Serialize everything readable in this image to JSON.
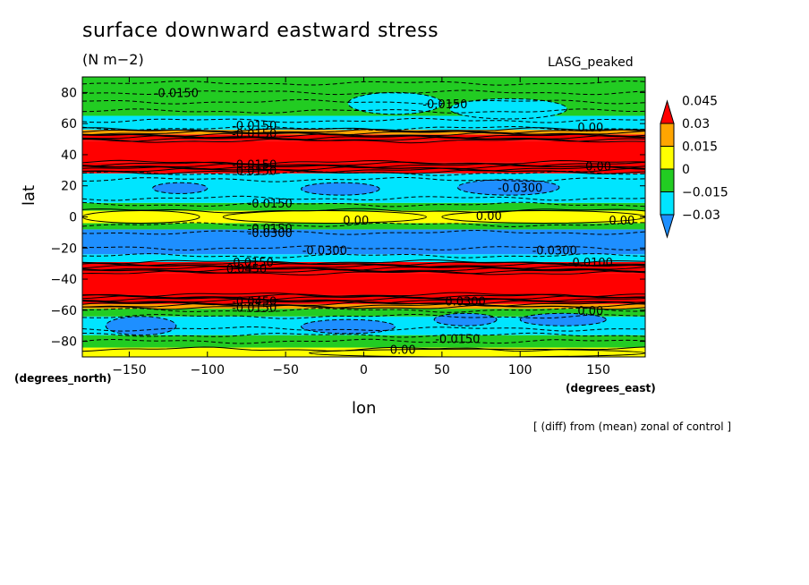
{
  "chart_data": {
    "type": "heatmap",
    "title": "surface downward eastward stress",
    "units": "(N m−2)",
    "dataset_label": "LASG_peaked",
    "xlabel": "lon",
    "ylabel": "lat",
    "x_units": "(degrees_east)",
    "y_units": "(degrees_north)",
    "footnote": "[ (diff) from (mean) zonal of control ]",
    "xlim": [
      -180,
      180
    ],
    "ylim": [
      -90,
      90
    ],
    "x_ticks": [
      -150,
      -100,
      -50,
      0,
      50,
      100,
      150
    ],
    "y_ticks": [
      -80,
      -60,
      -40,
      -20,
      0,
      20,
      40,
      60,
      80
    ],
    "x_tick_labels": [
      "−150",
      "−100",
      "−50",
      "0",
      "50",
      "100",
      "150"
    ],
    "y_tick_labels": [
      "−80",
      "−60",
      "−40",
      "−20",
      "0",
      "20",
      "40",
      "60",
      "80"
    ],
    "colorbar": {
      "levels": [
        -0.03,
        -0.015,
        0,
        0.015,
        0.03,
        0.045
      ],
      "level_labels": [
        "−0.03",
        "−0.015",
        "0",
        "0.015",
        "0.03",
        "0.045"
      ],
      "colors": [
        "#1e8fff",
        "#00e5ff",
        "#22cc22",
        "#ffff00",
        "#ffa500",
        "#ff0000"
      ]
    },
    "bands": [
      {
        "lat": [
          -90,
          -84
        ],
        "value": 0.005
      },
      {
        "lat": [
          -84,
          -76
        ],
        "value": -0.01
      },
      {
        "lat": [
          -76,
          -64
        ],
        "value": -0.02
      },
      {
        "lat": [
          -64,
          -59
        ],
        "value": -0.005
      },
      {
        "lat": [
          -59,
          -56
        ],
        "value": 0.02
      },
      {
        "lat": [
          -56,
          -50
        ],
        "value": 0.03
      },
      {
        "lat": [
          -50,
          -36
        ],
        "value": 0.05
      },
      {
        "lat": [
          -36,
          -29
        ],
        "value": 0.06
      },
      {
        "lat": [
          -29,
          -24
        ],
        "value": -0.02
      },
      {
        "lat": [
          -24,
          -8
        ],
        "value": -0.035
      },
      {
        "lat": [
          -8,
          -4
        ],
        "value": -0.01
      },
      {
        "lat": [
          -4,
          4
        ],
        "value": 0.005
      },
      {
        "lat": [
          4,
          9
        ],
        "value": -0.01
      },
      {
        "lat": [
          9,
          28
        ],
        "value": -0.02
      },
      {
        "lat": [
          28,
          35
        ],
        "value": 0.06
      },
      {
        "lat": [
          35,
          49
        ],
        "value": 0.05
      },
      {
        "lat": [
          49,
          53
        ],
        "value": 0.06
      },
      {
        "lat": [
          53,
          56
        ],
        "value": 0.02
      },
      {
        "lat": [
          56,
          65
        ],
        "value": -0.02
      },
      {
        "lat": [
          65,
          90
        ],
        "value": -0.01
      }
    ],
    "patches": [
      {
        "lon": [
          -135,
          -100
        ],
        "lat": [
          15,
          22
        ],
        "value": -0.035
      },
      {
        "lon": [
          -40,
          10
        ],
        "lat": [
          14,
          22
        ],
        "value": -0.035
      },
      {
        "lon": [
          60,
          125
        ],
        "lat": [
          14,
          24
        ],
        "value": -0.035
      },
      {
        "lon": [
          -180,
          -105
        ],
        "lat": [
          -4,
          4
        ],
        "value": 0.005
      },
      {
        "lon": [
          -90,
          40
        ],
        "lat": [
          -4,
          4
        ],
        "value": 0.005
      },
      {
        "lon": [
          50,
          180
        ],
        "lat": [
          -4,
          4
        ],
        "value": 0.005
      },
      {
        "lon": [
          -165,
          -120
        ],
        "lat": [
          -76,
          -64
        ],
        "value": -0.035
      },
      {
        "lon": [
          -40,
          20
        ],
        "lat": [
          -75,
          -66
        ],
        "value": -0.035
      },
      {
        "lon": [
          45,
          85
        ],
        "lat": [
          -70,
          -62
        ],
        "value": -0.035
      },
      {
        "lon": [
          100,
          155
        ],
        "lat": [
          -70,
          -62
        ],
        "value": -0.035
      },
      {
        "lon": [
          -35,
          180
        ],
        "lat": [
          -90,
          -85
        ],
        "value": 0.005
      },
      {
        "lon": [
          -10,
          50
        ],
        "lat": [
          66,
          80
        ],
        "value": -0.02
      },
      {
        "lon": [
          55,
          130
        ],
        "lat": [
          63,
          76
        ],
        "value": -0.02
      }
    ],
    "contour_lines_lat": [
      -85,
      -80,
      -76,
      -72,
      -64,
      -60,
      -58,
      -57,
      -56,
      -55,
      -54,
      -53,
      -52,
      -51,
      -50,
      -36,
      -35,
      -34,
      -33,
      -32,
      -31,
      -30,
      -29,
      -25,
      -20,
      -10,
      -5,
      4,
      8,
      12,
      24,
      28,
      29,
      30,
      31,
      32,
      33,
      34,
      35,
      49,
      50,
      51,
      52,
      53,
      54,
      55,
      56,
      57,
      62,
      68,
      74,
      80,
      86
    ],
    "contour_labels": [
      {
        "lon": -120,
        "lat": 79,
        "text": "-0.0150"
      },
      {
        "lon": 52,
        "lat": 72,
        "text": "-0.0150"
      },
      {
        "lon": -70,
        "lat": 58,
        "text": "-0.0150"
      },
      {
        "lon": -70,
        "lat": 53,
        "text": "-0.0150"
      },
      {
        "lon": 145,
        "lat": 57,
        "text": "0.00"
      },
      {
        "lon": -70,
        "lat": 33,
        "text": "-0.0150"
      },
      {
        "lon": -70,
        "lat": 29,
        "text": "-0.0150"
      },
      {
        "lon": 150,
        "lat": 32,
        "text": "0.00"
      },
      {
        "lon": 100,
        "lat": 18,
        "text": "-0.0300"
      },
      {
        "lon": -60,
        "lat": 8,
        "text": "-0.0150"
      },
      {
        "lon": -5,
        "lat": -3,
        "text": "0.00"
      },
      {
        "lon": 80,
        "lat": 0,
        "text": "0.00"
      },
      {
        "lon": 165,
        "lat": -3,
        "text": "0.00"
      },
      {
        "lon": -60,
        "lat": -8,
        "text": "-0.0150"
      },
      {
        "lon": -60,
        "lat": -11,
        "text": "-0.0300"
      },
      {
        "lon": -25,
        "lat": -22,
        "text": "-0.0300"
      },
      {
        "lon": 122,
        "lat": -22,
        "text": "-0.0300"
      },
      {
        "lon": -72,
        "lat": -30,
        "text": "-0.0150"
      },
      {
        "lon": -75,
        "lat": -34,
        "text": "0.0450"
      },
      {
        "lon": 145,
        "lat": -30,
        "text": "-0.0100"
      },
      {
        "lon": -70,
        "lat": -55,
        "text": "-0.0450"
      },
      {
        "lon": -70,
        "lat": -59,
        "text": "-0.0150"
      },
      {
        "lon": 65,
        "lat": -55,
        "text": "0.0300"
      },
      {
        "lon": 145,
        "lat": -61,
        "text": "0.00"
      },
      {
        "lon": 60,
        "lat": -79,
        "text": "-0.0150"
      },
      {
        "lon": 25,
        "lat": -86,
        "text": "0.00"
      }
    ]
  }
}
